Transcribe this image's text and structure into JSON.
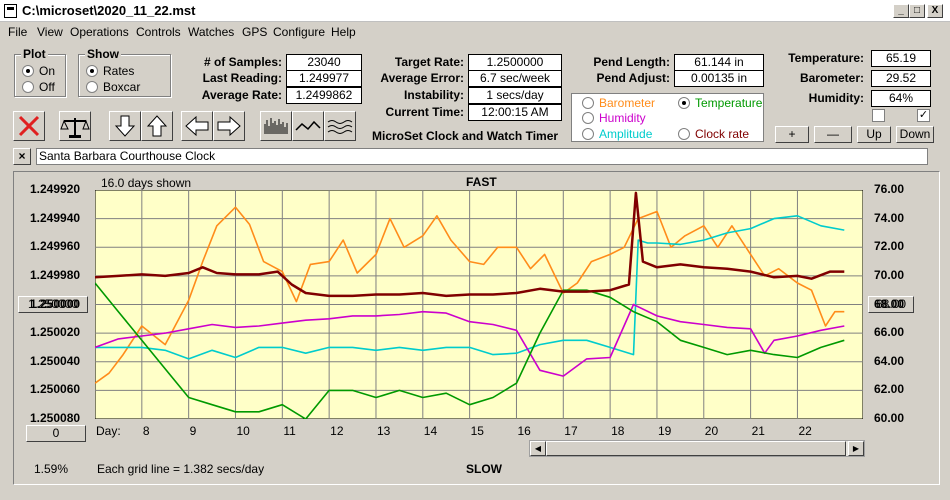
{
  "window": {
    "title": "C:\\microset\\2020_11_22.mst",
    "min": "_",
    "max": "□",
    "close": "X"
  },
  "menu": [
    "File",
    "View",
    "Operations",
    "Controls",
    "Watches",
    "GPS",
    "Configure",
    "Help"
  ],
  "plot_group": {
    "title": "Plot",
    "on": "On",
    "off": "Off",
    "selected": "On"
  },
  "show_group": {
    "title": "Show",
    "rates": "Rates",
    "boxcar": "Boxcar",
    "selected": "Rates"
  },
  "stats": {
    "samples_label": "# of Samples:",
    "samples": "23040",
    "last_label": "Last Reading:",
    "last": "1.249977",
    "avg_label": "Average Rate:",
    "avg": "1.2499862",
    "target_label": "Target Rate:",
    "target": "1.2500000",
    "avg_err_label": "Average Error:",
    "avg_err": "6.7 sec/week",
    "instab_label": "Instability:",
    "instab": "1 secs/day",
    "time_label": "Current Time:",
    "time": "12:00:15 AM",
    "pend_len_label": "Pend Length:",
    "pend_len": "61.144 in",
    "pend_adj_label": "Pend Adjust:",
    "pend_adj": "0.00135 in",
    "temp_label": "Temperature:",
    "temp": "65.19",
    "baro_label": "Barometer:",
    "baro": "29.52",
    "hum_label": "Humidity:",
    "hum": "64%"
  },
  "app_caption": "MicroSet Clock and Watch Timer",
  "sensors": {
    "barometer": "Barometer",
    "temperature": "Temperature",
    "humidity": "Humidity",
    "amplitude": "Amplitude",
    "clock_rate": "Clock rate",
    "selected": "Temperature",
    "colors": {
      "barometer": "#ff8c1a",
      "temperature": "#009900",
      "humidity": "#cc00cc",
      "amplitude": "#00cccc",
      "clock_rate": "#800000"
    }
  },
  "adjust_buttons": {
    "plus": "+",
    "minus": "—",
    "up": "Up",
    "down": "Down"
  },
  "checkboxes": [
    false,
    true
  ],
  "watch_name": "Santa Barbara Courthouse Clock",
  "clear_button": "×",
  "chart": {
    "days_shown": "16.0 days shown",
    "fast": "FAST",
    "slow": "SLOW",
    "day_label": "Day:",
    "grid_note": "Each grid line = 1.382 secs/day",
    "percent": "1.59%",
    "left_btn": "1.250000",
    "right_btn": "68.00",
    "bottom_btn": "0"
  },
  "chart_data": {
    "type": "line",
    "left_axis": {
      "ticks": [
        "1.249920",
        "1.249940",
        "1.249960",
        "1.249980",
        "1.250000",
        "1.250020",
        "1.250040",
        "1.250060",
        "1.250080"
      ],
      "ylim": [
        1.24992,
        1.25008
      ]
    },
    "right_axis": {
      "ticks": [
        "76.00",
        "74.00",
        "72.00",
        "70.00",
        "68.00",
        "66.00",
        "64.00",
        "62.00",
        "60.00"
      ],
      "ylim": [
        60,
        76
      ]
    },
    "days": [
      "8",
      "9",
      "10",
      "11",
      "12",
      "13",
      "14",
      "15",
      "16",
      "17",
      "18",
      "19",
      "20",
      "21",
      "22"
    ],
    "xlim": [
      7.0,
      23.4
    ],
    "series": [
      {
        "color": "#800000",
        "axis": "left",
        "x": [
          7.0,
          7.5,
          8.0,
          8.5,
          9.0,
          9.3,
          9.6,
          10.0,
          10.5,
          10.9,
          11.2,
          11.5,
          12.0,
          12.5,
          13.0,
          13.5,
          14.0,
          14.5,
          15.0,
          15.5,
          16.0,
          16.5,
          17.0,
          17.5,
          18.0,
          18.4,
          18.55,
          18.7,
          19.0,
          19.5,
          20.0,
          20.5,
          21.0,
          21.5,
          22.0,
          22.3,
          22.7,
          23.0
        ],
        "y": [
          1.249981,
          1.24998,
          1.249979,
          1.24998,
          1.249978,
          1.249974,
          1.249978,
          1.249979,
          1.249979,
          1.249977,
          1.249986,
          1.249992,
          1.249994,
          1.249994,
          1.249993,
          1.249993,
          1.249992,
          1.249994,
          1.249993,
          1.249993,
          1.249992,
          1.249989,
          1.249991,
          1.249991,
          1.24999,
          1.249986,
          1.249922,
          1.24997,
          1.249974,
          1.249972,
          1.249974,
          1.249975,
          1.249977,
          1.249981,
          1.24998,
          1.249982,
          1.249977,
          1.249977
        ]
      },
      {
        "color": "#ff8c1a",
        "axis": "right",
        "x": [
          7.0,
          7.3,
          7.6,
          8.0,
          8.5,
          9.0,
          9.3,
          9.6,
          10.0,
          10.3,
          10.6,
          11.0,
          11.3,
          11.6,
          12.0,
          12.3,
          12.6,
          13.0,
          13.3,
          13.6,
          14.0,
          14.3,
          14.6,
          15.0,
          15.3,
          15.6,
          16.0,
          16.3,
          16.6,
          17.0,
          17.3,
          17.6,
          18.0,
          18.3,
          18.6,
          19.0,
          19.3,
          19.6,
          20.0,
          20.3,
          20.6,
          21.0,
          21.3,
          21.6,
          22.0,
          22.3,
          22.6,
          22.8,
          23.0
        ],
        "y": [
          62.5,
          63.2,
          64.5,
          66.5,
          65.2,
          68.3,
          71.0,
          73.5,
          74.8,
          73.6,
          71.0,
          70.3,
          68.2,
          70.8,
          71.0,
          72.5,
          70.2,
          71.5,
          74.0,
          72.0,
          72.8,
          74.2,
          72.5,
          71.0,
          70.8,
          72.0,
          72.0,
          70.5,
          71.5,
          68.8,
          69.5,
          71.0,
          71.5,
          72.0,
          74.0,
          74.5,
          72.0,
          72.8,
          73.5,
          72.0,
          73.5,
          71.5,
          70.0,
          70.5,
          69.5,
          69.0,
          66.5,
          67.5,
          67.5
        ]
      },
      {
        "color": "#00cccc",
        "axis": "right",
        "x": [
          7.0,
          7.5,
          8.0,
          8.5,
          9.0,
          9.5,
          10.0,
          10.5,
          11.0,
          11.5,
          12.0,
          12.5,
          13.0,
          13.5,
          14.0,
          14.5,
          15.0,
          15.5,
          16.0,
          16.5,
          17.0,
          17.5,
          18.0,
          18.5,
          18.6,
          18.8,
          19.0,
          19.5,
          20.0,
          20.5,
          21.0,
          21.5,
          22.0,
          22.5,
          23.0
        ],
        "y": [
          65.0,
          65.0,
          65.0,
          64.8,
          64.2,
          64.8,
          64.3,
          65.0,
          65.0,
          64.6,
          65.0,
          65.0,
          64.8,
          65.0,
          64.8,
          65.0,
          65.0,
          64.5,
          64.6,
          65.2,
          65.5,
          65.5,
          65.0,
          64.5,
          72.5,
          72.3,
          72.3,
          72.2,
          72.5,
          73.0,
          73.3,
          74.0,
          74.2,
          73.5,
          73.2
        ]
      },
      {
        "color": "#cc00cc",
        "axis": "right",
        "x": [
          7.0,
          7.5,
          8.0,
          8.5,
          9.0,
          9.5,
          10.0,
          10.5,
          11.0,
          11.5,
          12.0,
          12.5,
          13.0,
          13.5,
          14.0,
          14.5,
          15.0,
          15.5,
          16.0,
          16.5,
          17.0,
          17.5,
          18.0,
          18.5,
          19.0,
          19.5,
          20.0,
          20.5,
          21.0,
          21.3,
          21.5,
          22.0,
          22.5,
          23.0
        ],
        "y": [
          65.0,
          65.6,
          65.8,
          66.0,
          66.3,
          66.6,
          66.4,
          66.5,
          66.7,
          66.9,
          67.0,
          67.2,
          67.2,
          67.3,
          67.5,
          67.4,
          66.8,
          66.6,
          66.2,
          63.4,
          63.0,
          64.2,
          64.3,
          68.0,
          67.2,
          66.8,
          66.6,
          66.4,
          66.3,
          64.6,
          65.5,
          65.8,
          66.2,
          66.5
        ]
      },
      {
        "color": "#009900",
        "axis": "right",
        "x": [
          7.0,
          7.5,
          8.0,
          8.5,
          9.0,
          9.5,
          10.0,
          10.5,
          11.0,
          11.5,
          12.0,
          12.5,
          13.0,
          13.5,
          14.0,
          14.5,
          15.0,
          15.5,
          16.0,
          16.5,
          17.0,
          17.5,
          18.0,
          18.5,
          19.0,
          19.5,
          20.0,
          20.5,
          21.0,
          21.5,
          22.0,
          22.5,
          23.0
        ],
        "y": [
          69.5,
          67.5,
          65.5,
          63.5,
          61.5,
          61.0,
          60.5,
          60.5,
          61.0,
          60.0,
          62.0,
          62.0,
          61.5,
          62.0,
          61.5,
          61.8,
          61.0,
          61.5,
          62.5,
          66.0,
          69.0,
          69.0,
          68.5,
          67.5,
          66.8,
          65.5,
          65.0,
          64.5,
          64.8,
          64.5,
          64.3,
          65.0,
          65.5
        ]
      }
    ]
  }
}
